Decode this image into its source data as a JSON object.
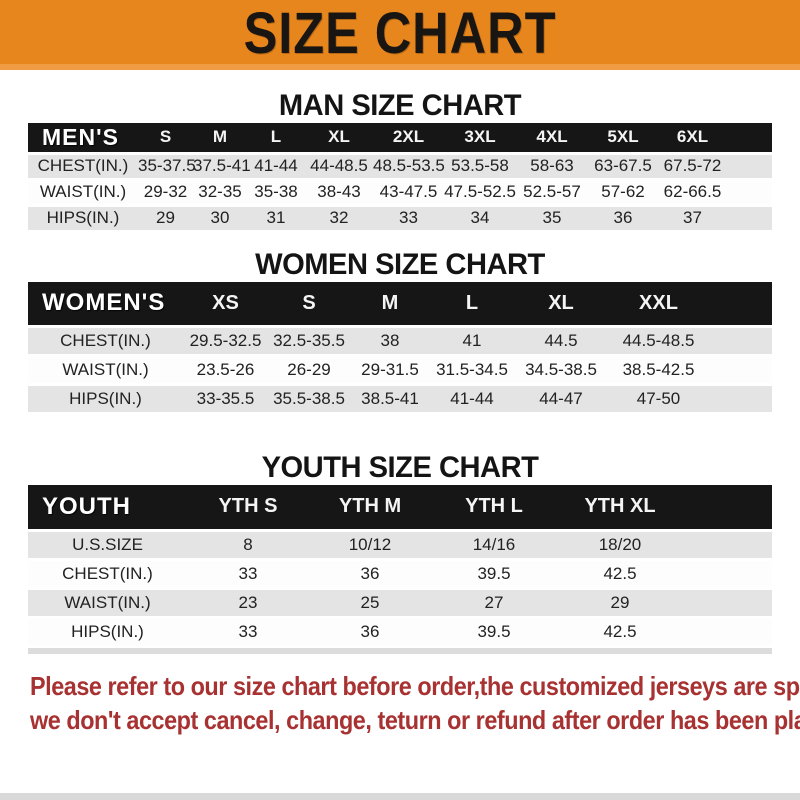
{
  "banner": {
    "title": "SIZE CHART",
    "bg_color": "#E8861E",
    "text_color": "#181512"
  },
  "colors": {
    "header_bar": "#161616",
    "row_shade": "#E4E4E4",
    "notice_red": "#A83131"
  },
  "tables": {
    "men": {
      "section_title": "MAN SIZE CHART",
      "header": [
        "MEN'S",
        "S",
        "M",
        "L",
        "XL",
        "2XL",
        "3XL",
        "4XL",
        "5XL",
        "6XL"
      ],
      "rows": [
        {
          "label": "CHEST(IN.)",
          "values": [
            "35-37.5",
            "37.5-41",
            "41-44",
            "44-48.5",
            "48.5-53.5",
            "53.5-58",
            "58-63",
            "63-67.5",
            "67.5-72"
          ]
        },
        {
          "label": "WAIST(IN.)",
          "values": [
            "29-32",
            "32-35",
            "35-38",
            "38-43",
            "43-47.5",
            "47.5-52.5",
            "52.5-57",
            "57-62",
            "62-66.5"
          ]
        },
        {
          "label": "HIPS(IN.)",
          "values": [
            "29",
            "30",
            "31",
            "32",
            "33",
            "34",
            "35",
            "36",
            "37"
          ]
        }
      ]
    },
    "women": {
      "section_title": "WOMEN SIZE CHART",
      "header": [
        "WOMEN'S",
        "XS",
        "S",
        "M",
        "L",
        "XL",
        "XXL"
      ],
      "rows": [
        {
          "label": "CHEST(IN.)",
          "values": [
            "29.5-32.5",
            "32.5-35.5",
            "38",
            "41",
            "44.5",
            "44.5-48.5"
          ]
        },
        {
          "label": "WAIST(IN.)",
          "values": [
            "23.5-26",
            "26-29",
            "29-31.5",
            "31.5-34.5",
            "34.5-38.5",
            "38.5-42.5"
          ]
        },
        {
          "label": "HIPS(IN.)",
          "values": [
            "33-35.5",
            "35.5-38.5",
            "38.5-41",
            "41-44",
            "44-47",
            "47-50"
          ]
        }
      ]
    },
    "youth": {
      "section_title": "YOUTH SIZE CHART",
      "header": [
        "YOUTH",
        "YTH S",
        "YTH M",
        "YTH L",
        "YTH XL"
      ],
      "rows": [
        {
          "label": "U.S.SIZE",
          "values": [
            "8",
            "10/12",
            "14/16",
            "18/20"
          ]
        },
        {
          "label": "CHEST(IN.)",
          "values": [
            "33",
            "36",
            "39.5",
            "42.5"
          ]
        },
        {
          "label": "WAIST(IN.)",
          "values": [
            "23",
            "25",
            "27",
            "29"
          ]
        },
        {
          "label": "HIPS(IN.)",
          "values": [
            "33",
            "36",
            "39.5",
            "42.5"
          ]
        }
      ]
    }
  },
  "notice": {
    "line1": "Please refer to our size chart before order,the customized jerseys are special products,",
    "line2": "we don't accept cancel, change, teturn or refund after order has been placed!"
  }
}
